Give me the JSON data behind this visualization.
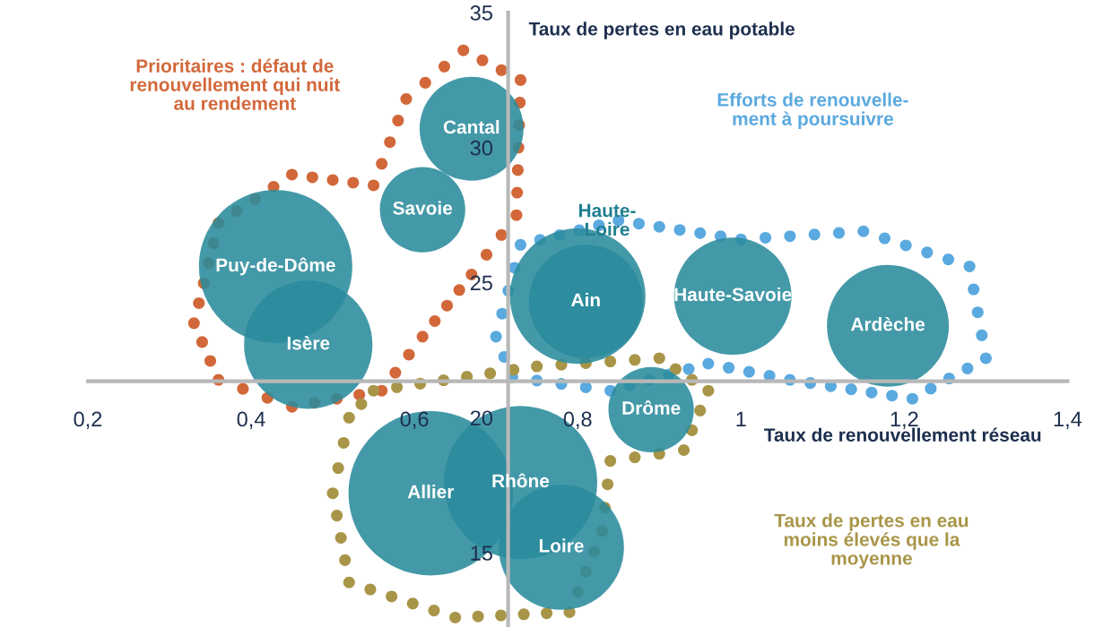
{
  "chart_data": {
    "type": "bubble",
    "xlabel": "Taux de renouvellement réseau",
    "ylabel": "Taux de pertes en eau potable",
    "x": [
      0.67,
      0.61,
      0.43,
      0.47,
      0.8,
      0.81,
      0.99,
      1.18,
      0.89,
      0.62,
      0.73,
      0.78
    ],
    "series": [
      {
        "color": "#2a8b9c",
        "values": [
          30.7,
          27.7,
          25.6,
          22.7,
          24.5,
          24.3,
          24.5,
          23.4,
          20.3,
          17.2,
          17.6,
          15.2
        ],
        "sizes": [
          0.4,
          0.27,
          0.87,
          0.61,
          0.68,
          0.48,
          0.51,
          0.55,
          0.27,
          1,
          0.87,
          0.58
        ]
      }
    ],
    "annotations": [
      {
        "text": "Cantal",
        "x": 0.67,
        "y": 30.7
      },
      {
        "text": "Savoie",
        "x": 0.61,
        "y": 27.7
      },
      {
        "text": "Puy-de-Dôme",
        "x": 0.43,
        "y": 25.6
      },
      {
        "text": "Isère",
        "x": 0.47,
        "y": 22.7
      },
      {
        "text": "Ain",
        "x": 0.81,
        "y": 24.3
      },
      {
        "text": "Haute-Savoie",
        "x": 0.99,
        "y": 24.5
      },
      {
        "text": "Ardèche",
        "x": 1.18,
        "y": 23.4
      },
      {
        "text": "Drôme",
        "x": 0.89,
        "y": 20.3
      },
      {
        "text": "Allier",
        "x": 0.62,
        "y": 17.2
      },
      {
        "text": "Rhône",
        "x": 0.73,
        "y": 17.6
      },
      {
        "text": "Loire",
        "x": 0.78,
        "y": 15.2
      },
      "Prioritaires : défaut de\nrenouvellement qui nuit\nau rendement",
      "Efforts de renouvelle-\nment à poursuivre",
      "Taux de pertes en eau\nmoins élevés que la\nmoyenne",
      "Haute-\nLoire"
    ],
    "xlim": [
      0.2,
      1.4
    ],
    "ylim": [
      12.25,
      35
    ],
    "xticks": [
      {
        "value": 0.2,
        "label": "0,2"
      },
      {
        "value": 0.4,
        "label": "0,4"
      },
      {
        "value": 0.6,
        "label": "0,6"
      },
      {
        "value": 0.8,
        "label": "0,8"
      },
      {
        "value": 1,
        "label": "1"
      },
      {
        "value": 1.2,
        "label": "1,2"
      },
      {
        "value": 1.4,
        "label": "1,4"
      }
    ],
    "yticks": [
      15,
      20,
      25,
      30,
      35
    ],
    "grid": false,
    "legend": false
  }
}
